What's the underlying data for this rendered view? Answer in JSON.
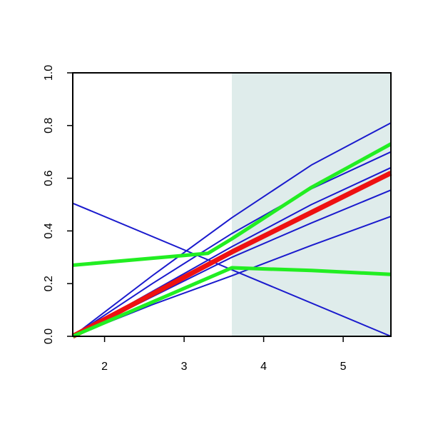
{
  "chart_data": {
    "type": "line",
    "xlim": [
      1.6,
      5.6
    ],
    "ylim": [
      0,
      1
    ],
    "xticks": [
      2,
      3,
      4,
      5
    ],
    "yticks": [
      {
        "value": 0,
        "label": "0.0"
      },
      0.2,
      0.4,
      0.6,
      0.8,
      {
        "value": 1,
        "label": "1.0"
      }
    ],
    "shaded_xrange": [
      3.6,
      5.6
    ],
    "shade_color": "#dfeceb",
    "series": [
      {
        "color": "#1a1acd",
        "width": 2,
        "x": [
          1.6,
          2.6,
          3.6,
          4.6,
          5.6
        ],
        "values": [
          0,
          0.23,
          0.45,
          0.65,
          0.81
        ]
      },
      {
        "color": "#1a1acd",
        "width": 2,
        "x": [
          1.6,
          2.6,
          3.6,
          4.6,
          5.6
        ],
        "values": [
          0,
          0.2,
          0.39,
          0.56,
          0.7
        ]
      },
      {
        "color": "#1a1acd",
        "width": 2,
        "x": [
          1.6,
          2.6,
          3.6,
          4.6,
          5.6
        ],
        "values": [
          0,
          0.17,
          0.34,
          0.5,
          0.64
        ]
      },
      {
        "color": "#1a1acd",
        "width": 2,
        "x": [
          1.6,
          2.6,
          3.6,
          4.6,
          5.6
        ],
        "values": [
          0,
          0.15,
          0.3,
          0.43,
          0.555
        ]
      },
      {
        "color": "#1a1acd",
        "width": 2,
        "x": [
          1.6,
          2.6,
          3.6,
          4.6,
          5.6
        ],
        "values": [
          0,
          0.12,
          0.23,
          0.345,
          0.455
        ]
      },
      {
        "color": "#1a1acd",
        "width": 2,
        "x": [
          1.6,
          5.6
        ],
        "values": [
          0.505,
          0
        ]
      },
      {
        "color": "#ee1111",
        "width": 7,
        "x": [
          1.6,
          2.6,
          3.6,
          4.6,
          5.6
        ],
        "values": [
          0,
          0.16,
          0.32,
          0.47,
          0.62
        ]
      },
      {
        "color": "#22ee22",
        "width": 5,
        "x": [
          1.6,
          3.3,
          3.6,
          4.6,
          5.6
        ],
        "values": [
          0.27,
          0.315,
          0.37,
          0.565,
          0.73
        ]
      },
      {
        "color": "#22ee22",
        "width": 5,
        "x": [
          1.6,
          2.6,
          3.6,
          4.6,
          5.6
        ],
        "values": [
          0,
          0.13,
          0.26,
          0.25,
          0.235
        ]
      }
    ]
  }
}
